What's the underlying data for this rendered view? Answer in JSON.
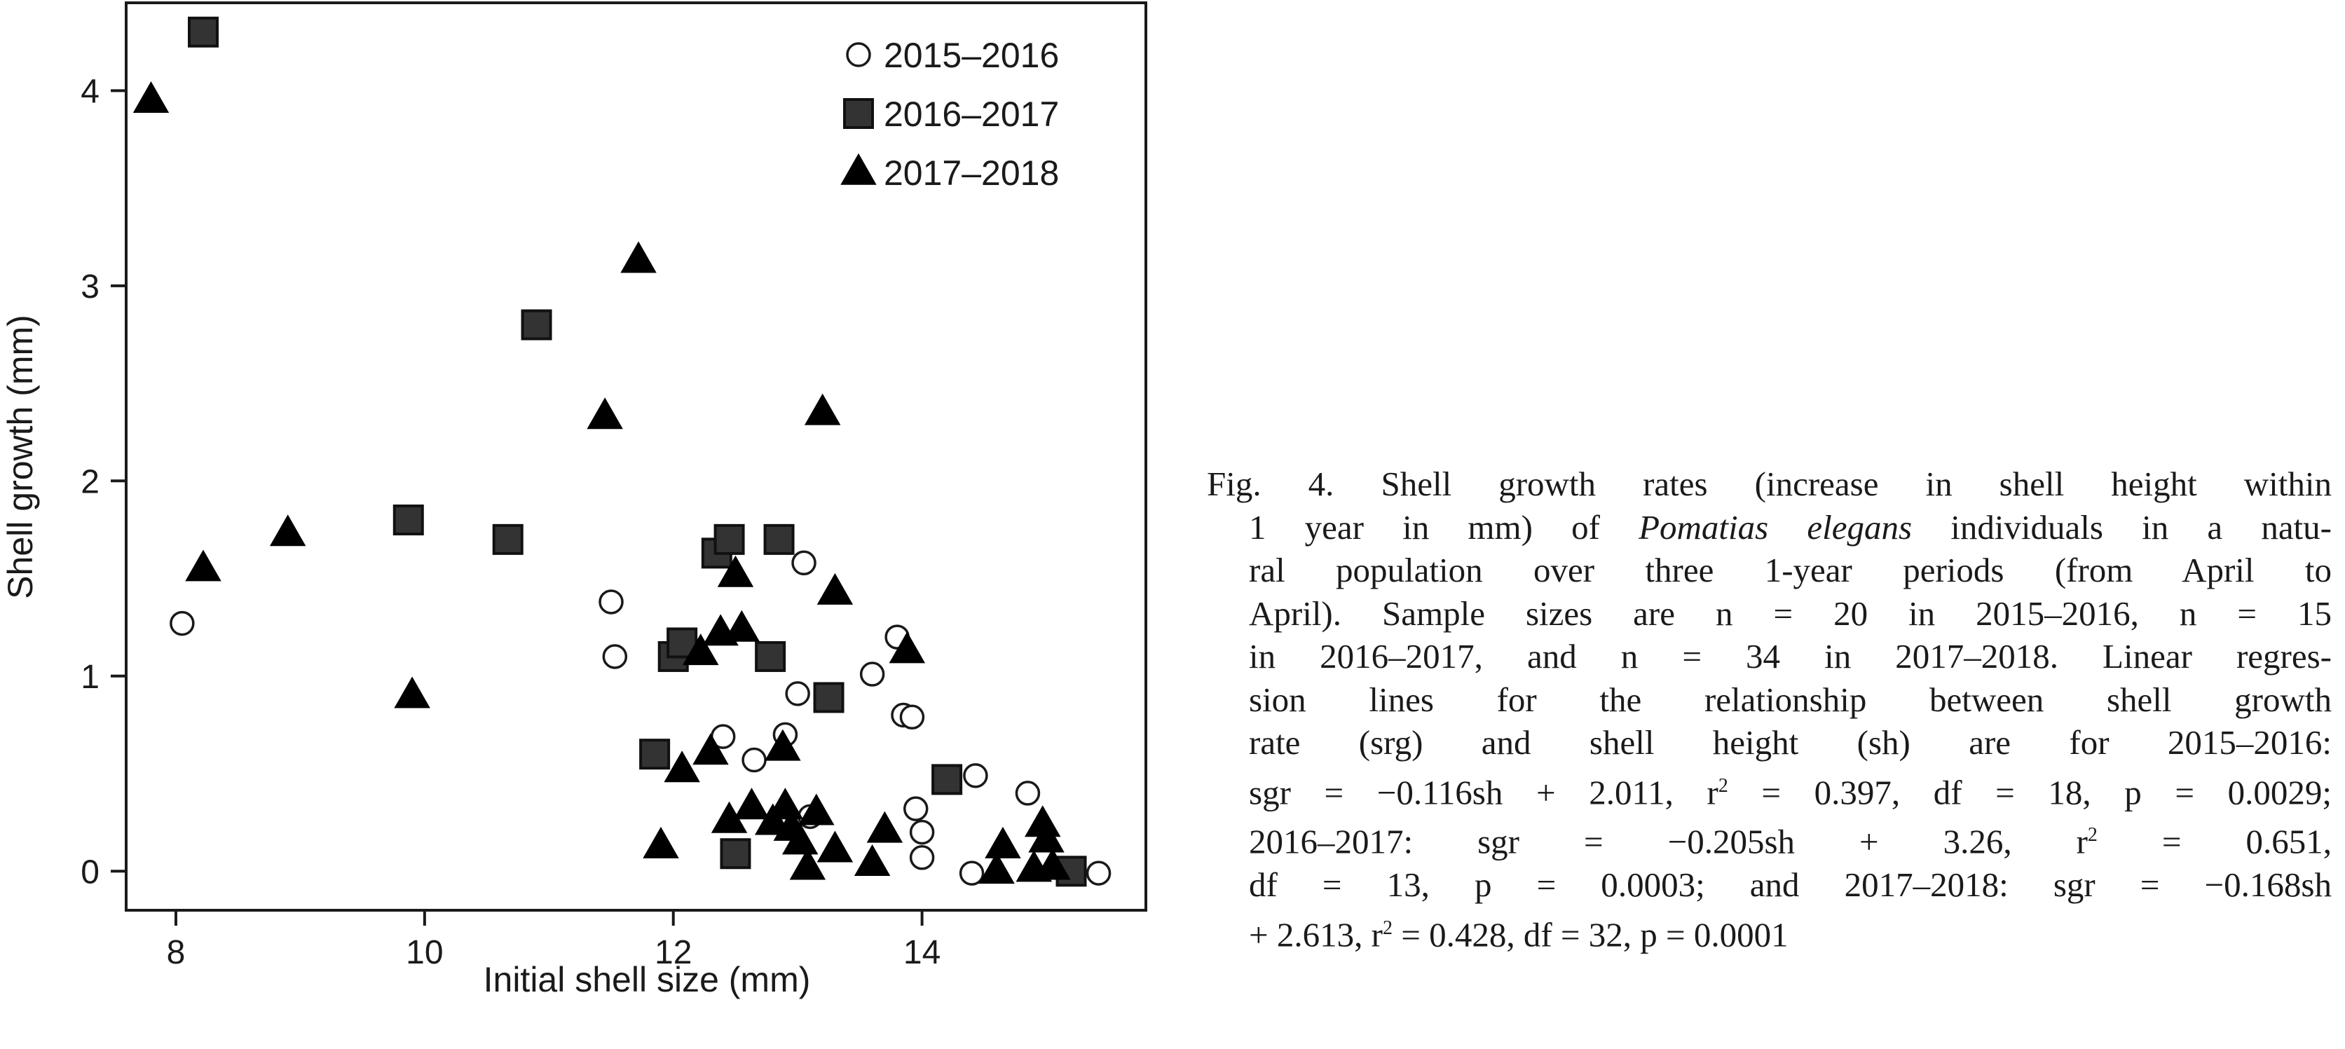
{
  "chart_data": {
    "type": "scatter",
    "xlabel": "Initial shell size (mm)",
    "ylabel": "Shell growth (mm)",
    "xlim": [
      7.6,
      15.8
    ],
    "ylim": [
      -0.2,
      4.45
    ],
    "xticks": [
      "8",
      "10",
      "12",
      "14"
    ],
    "yticks": [
      "0",
      "1",
      "2",
      "3",
      "4"
    ],
    "grid": false,
    "legend_position": "top-right",
    "series": [
      {
        "name": "2015–2016",
        "marker": "open-circle",
        "points": [
          [
            8.05,
            1.27
          ],
          [
            11.5,
            1.38
          ],
          [
            11.53,
            1.1
          ],
          [
            12.4,
            0.69
          ],
          [
            12.65,
            0.57
          ],
          [
            12.9,
            0.7
          ],
          [
            13.0,
            0.91
          ],
          [
            13.05,
            1.58
          ],
          [
            13.1,
            0.28
          ],
          [
            13.6,
            1.01
          ],
          [
            13.8,
            1.2
          ],
          [
            13.85,
            0.8
          ],
          [
            13.92,
            0.79
          ],
          [
            13.95,
            0.32
          ],
          [
            14.0,
            0.2
          ],
          [
            14.0,
            0.07
          ],
          [
            14.4,
            -0.01
          ],
          [
            14.43,
            0.49
          ],
          [
            14.85,
            0.4
          ],
          [
            15.42,
            -0.01
          ]
        ]
      },
      {
        "name": "2016–2017",
        "marker": "filled-square",
        "points": [
          [
            8.22,
            4.3
          ],
          [
            9.87,
            1.8
          ],
          [
            10.67,
            1.7
          ],
          [
            10.9,
            2.8
          ],
          [
            11.85,
            0.6
          ],
          [
            12.0,
            1.1
          ],
          [
            12.07,
            1.17
          ],
          [
            12.35,
            1.63
          ],
          [
            12.45,
            1.7
          ],
          [
            12.5,
            0.09
          ],
          [
            12.78,
            1.1
          ],
          [
            12.85,
            1.7
          ],
          [
            13.25,
            0.89
          ],
          [
            14.2,
            0.47
          ],
          [
            15.2,
            0.0
          ]
        ]
      },
      {
        "name": "2017–2018",
        "marker": "filled-triangle",
        "points": [
          [
            7.8,
            3.95
          ],
          [
            8.22,
            1.55
          ],
          [
            8.9,
            1.73
          ],
          [
            9.9,
            0.9
          ],
          [
            11.45,
            2.33
          ],
          [
            11.72,
            3.13
          ],
          [
            11.9,
            0.13
          ],
          [
            12.07,
            0.52
          ],
          [
            12.22,
            1.12
          ],
          [
            12.3,
            0.61
          ],
          [
            12.38,
            1.22
          ],
          [
            12.45,
            0.26
          ],
          [
            12.5,
            1.52
          ],
          [
            12.55,
            1.24
          ],
          [
            12.63,
            0.33
          ],
          [
            12.8,
            0.25
          ],
          [
            12.88,
            0.63
          ],
          [
            12.9,
            0.33
          ],
          [
            12.95,
            0.22
          ],
          [
            13.02,
            0.15
          ],
          [
            13.08,
            0.02
          ],
          [
            13.15,
            0.3
          ],
          [
            13.2,
            2.35
          ],
          [
            13.3,
            0.11
          ],
          [
            13.3,
            1.43
          ],
          [
            13.6,
            0.04
          ],
          [
            13.7,
            0.21
          ],
          [
            13.88,
            1.13
          ],
          [
            14.6,
            0.0
          ],
          [
            14.65,
            0.13
          ],
          [
            14.9,
            0.01
          ],
          [
            14.97,
            0.24
          ],
          [
            15.0,
            0.16
          ],
          [
            15.05,
            0.02
          ]
        ]
      }
    ]
  },
  "caption": {
    "lines": [
      "Fig. 4. Shell growth rates (increase in shell height within",
      "1 year in mm) of ",
      "ral population over three 1-year periods (from April to",
      "April). Sample sizes are n = 20 in 2015–2016, n = 15",
      "in 2016–2017, and n = 34 in 2017–2018. Linear regres-",
      "sion lines for the relationship between shell growth",
      "rate (srg) and shell height (sh) are for 2015–2016:",
      "sgr = −0.116sh + 2.011, r",
      "2016–2017: sgr = −0.205sh + 3.26, r",
      "df = 13, p = 0.0003; and 2017–2018: sgr = −0.168sh",
      "+ 2.613, r"
    ],
    "species": "Pomatias elegans",
    "line2_tail": " individuals in a natu-",
    "sup": "2",
    "line8_tail": " = 0.397, df = 18, p = 0.0029;",
    "line9_tail": " = 0.651,",
    "line11_tail": " = 0.428, df = 32, p = 0.0001"
  }
}
